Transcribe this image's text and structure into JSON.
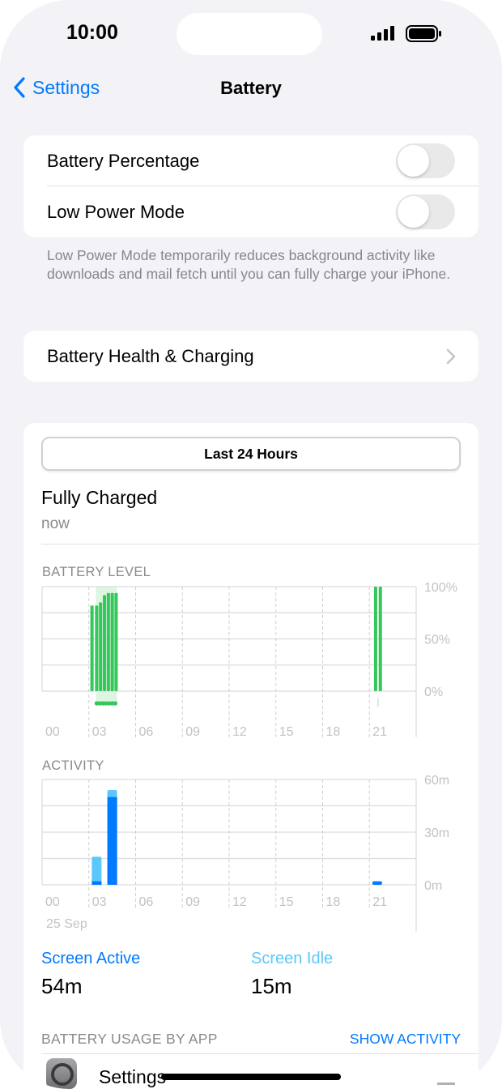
{
  "status_bar": {
    "time": "10:00",
    "icons": [
      "cellular-signal-icon",
      "battery-icon"
    ]
  },
  "nav": {
    "back_label": "Settings",
    "title": "Battery"
  },
  "toggles": [
    {
      "label": "Battery Percentage",
      "on": false
    },
    {
      "label": "Low Power Mode",
      "on": false
    }
  ],
  "low_power_note": "Low Power Mode temporarily reduces background activity like downloads and mail fetch until you can fully charge your iPhone.",
  "health_row": {
    "label": "Battery Health & Charging"
  },
  "usage": {
    "segment_label": "Last 24 Hours",
    "charge_status": "Fully Charged",
    "charge_time": "now",
    "battery_level_label": "BATTERY LEVEL",
    "activity_label": "ACTIVITY",
    "date_label": "25 Sep",
    "screen_active_label": "Screen Active",
    "screen_active_value": "54m",
    "screen_idle_label": "Screen Idle",
    "screen_idle_value": "15m",
    "by_app_label": "BATTERY USAGE BY APP",
    "show_activity_label": "SHOW ACTIVITY",
    "apps": [
      {
        "name": "Settings",
        "icon": "settings-gear-icon"
      }
    ]
  },
  "colors": {
    "accent": "#007aff",
    "battery": "#34c759",
    "battery_charging_shade": "#d4f3da",
    "screen_active": "#007aff",
    "screen_idle": "#5ac8fa"
  },
  "chart_data": [
    {
      "type": "bar",
      "title": "BATTERY LEVEL",
      "x_ticks": [
        "00",
        "03",
        "06",
        "09",
        "12",
        "15",
        "18",
        "21"
      ],
      "y_ticks": [
        "100%",
        "50%",
        "0%"
      ],
      "xlim": [
        0,
        24
      ],
      "ylim": [
        0,
        100
      ],
      "x_unit": "hour",
      "points": [
        {
          "x": 3.2,
          "y": 82
        },
        {
          "x": 3.5,
          "y": 82
        },
        {
          "x": 3.75,
          "y": 85
        },
        {
          "x": 4.0,
          "y": 92
        },
        {
          "x": 4.25,
          "y": 94
        },
        {
          "x": 4.5,
          "y": 94
        },
        {
          "x": 4.75,
          "y": 94
        },
        {
          "x": 21.4,
          "y": 100
        },
        {
          "x": 21.7,
          "y": 100
        }
      ],
      "charging_intervals": [
        [
          3.45,
          4.8
        ],
        [
          21.3,
          21.8
        ]
      ],
      "grid": true
    },
    {
      "type": "bar",
      "title": "ACTIVITY",
      "x_ticks": [
        "00",
        "03",
        "06",
        "09",
        "12",
        "15",
        "18",
        "21"
      ],
      "y_ticks": [
        "60m",
        "30m",
        "0m"
      ],
      "xlim": [
        0,
        24
      ],
      "ylim": [
        0,
        60
      ],
      "x_unit": "hour",
      "categories": [
        3,
        4,
        21
      ],
      "series": [
        {
          "name": "Screen Active",
          "values": [
            2,
            50,
            2
          ]
        },
        {
          "name": "Screen Idle",
          "values": [
            14,
            4,
            0
          ]
        }
      ],
      "grid": true
    }
  ]
}
